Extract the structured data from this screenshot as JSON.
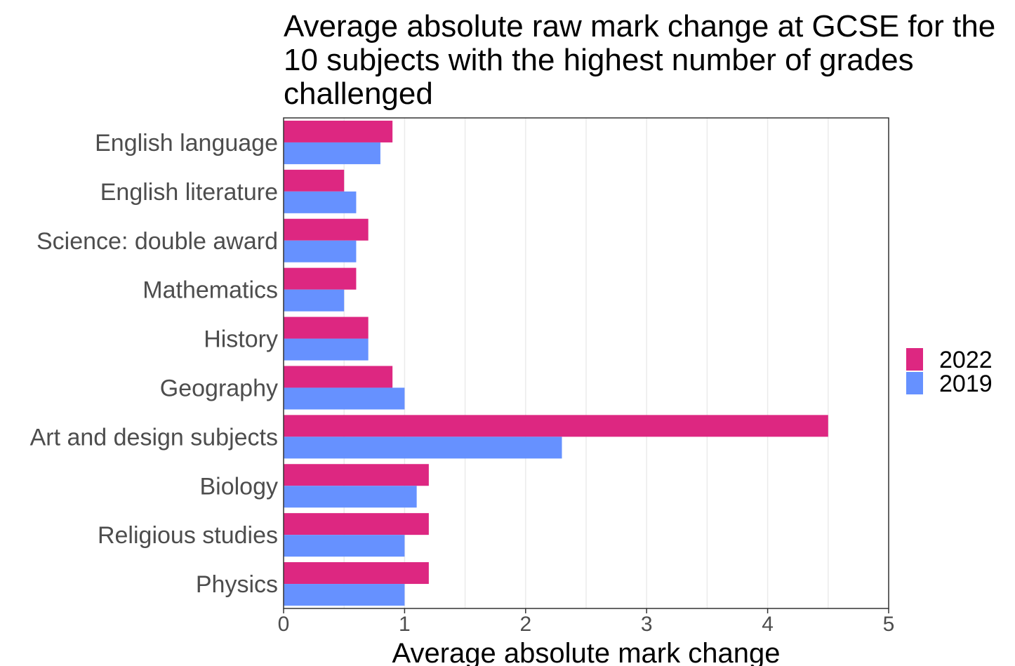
{
  "chart_data": {
    "type": "bar",
    "orientation": "horizontal",
    "title_lines": [
      "Average absolute raw mark change at GCSE for the",
      "10 subjects with the highest number of grades",
      "challenged"
    ],
    "xlabel": "Average absolute mark change",
    "ylabel": "",
    "xlim": [
      0,
      5
    ],
    "xticks": [
      "0",
      "1",
      "2",
      "3",
      "4",
      "5"
    ],
    "categories": [
      "English language",
      "English literature",
      "Science: double award",
      "Mathematics",
      "History",
      "Geography",
      "Art and design subjects",
      "Biology",
      "Religious studies",
      "Physics"
    ],
    "series": [
      {
        "name": "2022",
        "color": "#dd2781",
        "values": [
          0.9,
          0.5,
          0.7,
          0.6,
          0.7,
          0.9,
          4.5,
          1.2,
          1.2,
          1.2
        ]
      },
      {
        "name": "2019",
        "color": "#6691ff",
        "values": [
          0.8,
          0.6,
          0.6,
          0.5,
          0.7,
          1.0,
          2.3,
          1.1,
          1.0,
          1.0
        ]
      }
    ],
    "grid": true,
    "legend": "right"
  }
}
